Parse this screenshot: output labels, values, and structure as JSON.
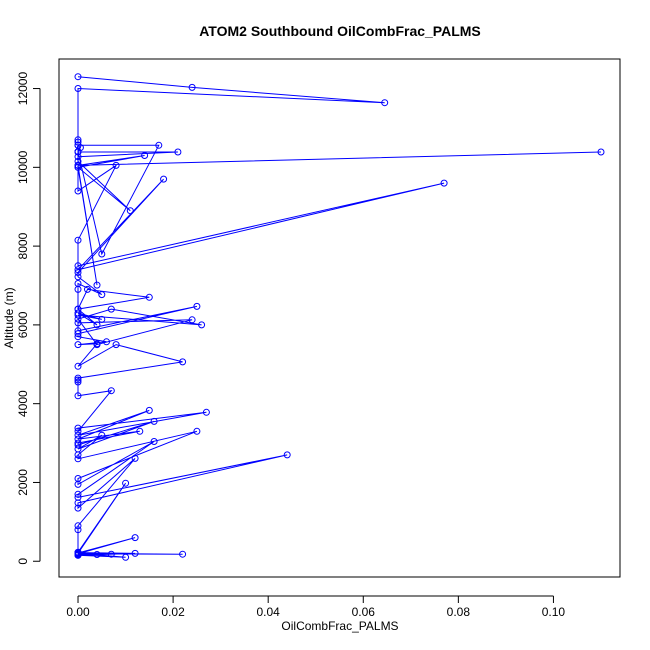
{
  "chart_data": {
    "type": "line",
    "title": "ATOM2 Southbound OilCombFrac_PALMS",
    "xlabel": "OilCombFrac_PALMS",
    "ylabel": "Altitude (m)",
    "xlim": [
      -0.004,
      0.114
    ],
    "ylim": [
      -400,
      12750
    ],
    "x_ticks": [
      0.0,
      0.02,
      0.04,
      0.06,
      0.08,
      0.1
    ],
    "x_tick_labels": [
      "0.00",
      "0.02",
      "0.04",
      "0.06",
      "0.08",
      "0.10"
    ],
    "y_ticks": [
      0,
      2000,
      4000,
      6000,
      8000,
      10000,
      12000
    ],
    "y_tick_labels": [
      "0",
      "2000",
      "4000",
      "6000",
      "8000",
      "10000",
      "12000"
    ],
    "grid": false,
    "legend": "none",
    "series": [
      {
        "color": "#0000ff",
        "marker": "open-circle",
        "x": [
          0.0,
          0.024,
          0.0645,
          0.0,
          0.0,
          0.0,
          0.0,
          0.0005,
          0.0,
          0.0,
          0.021,
          0.0,
          0.0,
          0.011,
          0.0,
          0.004,
          0.0,
          0.11,
          0.0,
          0.014,
          0.0,
          0.0,
          0.017,
          0.005,
          0.0,
          0.0,
          0.008,
          0.0,
          0.0,
          0.077,
          0.0,
          0.018,
          0.0,
          0.0,
          0.005,
          0.0,
          0.0,
          0.0,
          0.002,
          0.015,
          0.0,
          0.004,
          0.0,
          0.005,
          0.0,
          0.026,
          0.007,
          0.0,
          0.004,
          0.024,
          0.0,
          0.0,
          0.025,
          0.0,
          0.0,
          0.006,
          0.0,
          0.004,
          0.0,
          0.008,
          0.022,
          0.0,
          0.0,
          0.0,
          0.0,
          0.007,
          0.0,
          0.0,
          0.027,
          0.0,
          0.015,
          0.0,
          0.013,
          0.0,
          0.0,
          0.016,
          0.0,
          0.005,
          0.0,
          0.0,
          0.025,
          0.0,
          0.0,
          0.016,
          0.0,
          0.0,
          0.044,
          0.0,
          0.0,
          0.012,
          0.0,
          0.0,
          0.0,
          0.01,
          0.0,
          0.0,
          0.0,
          0.0,
          0.0,
          0.0,
          0.012,
          0.0,
          0.0,
          0.0,
          0.004,
          0.0,
          0.007,
          0.0,
          0.012,
          0.0,
          0.022,
          0.0,
          0.01,
          0.0,
          0.0
        ],
        "y": [
          12300,
          12030,
          11640,
          12000,
          10700,
          10640,
          10560,
          10500,
          10400,
          10390,
          10390,
          10270,
          10150,
          8900,
          10000,
          7010,
          10050,
          10390,
          10050,
          10300,
          10000,
          10560,
          10560,
          7800,
          10400,
          9400,
          10050,
          8150,
          7500,
          9600,
          7400,
          9700,
          7330,
          7220,
          6770,
          7050,
          6900,
          6400,
          6900,
          6700,
          6400,
          6000,
          6300,
          6140,
          6250,
          6000,
          6400,
          6150,
          5500,
          6130,
          6050,
          5850,
          6470,
          5780,
          5700,
          5570,
          5500,
          5520,
          4950,
          5500,
          5060,
          4650,
          4600,
          4550,
          4200,
          4330,
          3300,
          3380,
          3780,
          3200,
          3830,
          3100,
          3300,
          3000,
          2950,
          3550,
          2850,
          3200,
          2700,
          2600,
          3300,
          2100,
          1950,
          3040,
          1700,
          1620,
          2700,
          1480,
          1350,
          2610,
          900,
          800,
          230,
          1980,
          200,
          180,
          170,
          210,
          170,
          150,
          200,
          220,
          190,
          160,
          170,
          180,
          180,
          210,
          600,
          190,
          180,
          200,
          100,
          150,
          200
        ]
      }
    ]
  }
}
